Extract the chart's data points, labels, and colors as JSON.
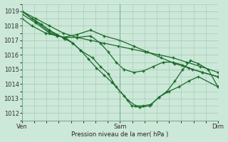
{
  "title": "Pression niveau de la mer( hPa )",
  "bg_color": "#cce8d8",
  "grid_color": "#a0c8b0",
  "line_color": "#1a6b2a",
  "marker": "+",
  "markersize": 3.5,
  "markeredgewidth": 1.0,
  "linewidth": 0.9,
  "ylim": [
    1011.5,
    1019.5
  ],
  "yticks": [
    1012,
    1013,
    1014,
    1015,
    1016,
    1017,
    1018,
    1019
  ],
  "xtick_labels": [
    "Ven",
    "Sam",
    "Dim"
  ],
  "xtick_positions": [
    0,
    0.5,
    1.0
  ],
  "series": [
    {
      "x": [
        0.0,
        0.07,
        0.14,
        0.21,
        0.28,
        0.35,
        0.42,
        0.49,
        0.56,
        0.63,
        0.7,
        0.77,
        0.84,
        0.91,
        1.0
      ],
      "y": [
        1019.0,
        1018.5,
        1018.0,
        1017.5,
        1017.2,
        1017.0,
        1016.8,
        1016.6,
        1016.4,
        1016.2,
        1016.0,
        1015.8,
        1015.5,
        1015.2,
        1014.8
      ]
    },
    {
      "x": [
        0.0,
        0.07,
        0.14,
        0.21,
        0.28,
        0.35,
        0.42,
        0.5,
        0.57,
        0.64,
        0.71,
        0.78,
        0.85,
        0.92,
        1.0
      ],
      "y": [
        1019.0,
        1018.3,
        1017.6,
        1017.2,
        1017.4,
        1017.7,
        1017.3,
        1017.0,
        1016.6,
        1016.2,
        1015.8,
        1015.4,
        1015.1,
        1014.8,
        1014.5
      ]
    },
    {
      "x": [
        0.0,
        0.07,
        0.14,
        0.21,
        0.28,
        0.35,
        0.4,
        0.44,
        0.48,
        0.52,
        0.57,
        0.62,
        0.67,
        0.72,
        0.77,
        0.82,
        0.87,
        0.92,
        1.0
      ],
      "y": [
        1018.8,
        1018.2,
        1017.5,
        1017.2,
        1017.2,
        1017.3,
        1016.8,
        1016.2,
        1015.5,
        1015.0,
        1014.8,
        1014.9,
        1015.2,
        1015.5,
        1015.5,
        1015.3,
        1015.0,
        1014.8,
        1014.5
      ]
    },
    {
      "x": [
        0.0,
        0.05,
        0.12,
        0.18,
        0.22,
        0.26,
        0.3,
        0.36,
        0.4,
        0.44,
        0.48,
        0.52,
        0.56,
        0.6,
        0.65,
        0.7,
        0.75,
        0.8,
        0.85,
        0.9,
        1.0
      ],
      "y": [
        1018.5,
        1018.0,
        1017.5,
        1017.3,
        1017.2,
        1016.8,
        1016.3,
        1015.8,
        1015.2,
        1014.7,
        1013.8,
        1013.2,
        1012.5,
        1012.4,
        1012.5,
        1013.1,
        1013.5,
        1013.8,
        1014.2,
        1014.5,
        1013.8
      ]
    },
    {
      "x": [
        0.0,
        0.05,
        0.1,
        0.14,
        0.18,
        0.22,
        0.26,
        0.3,
        0.34,
        0.38,
        0.42,
        0.46,
        0.5,
        0.54,
        0.58,
        0.62,
        0.66,
        0.7,
        0.74,
        0.78,
        0.82,
        0.86,
        0.9,
        0.95,
        1.0
      ],
      "y": [
        1019.0,
        1018.5,
        1018.1,
        1017.7,
        1017.4,
        1017.1,
        1016.8,
        1016.3,
        1015.7,
        1015.1,
        1014.6,
        1014.1,
        1013.5,
        1012.9,
        1012.5,
        1012.5,
        1012.6,
        1013.1,
        1013.5,
        1014.2,
        1015.0,
        1015.6,
        1015.4,
        1015.0,
        1013.8
      ]
    }
  ]
}
